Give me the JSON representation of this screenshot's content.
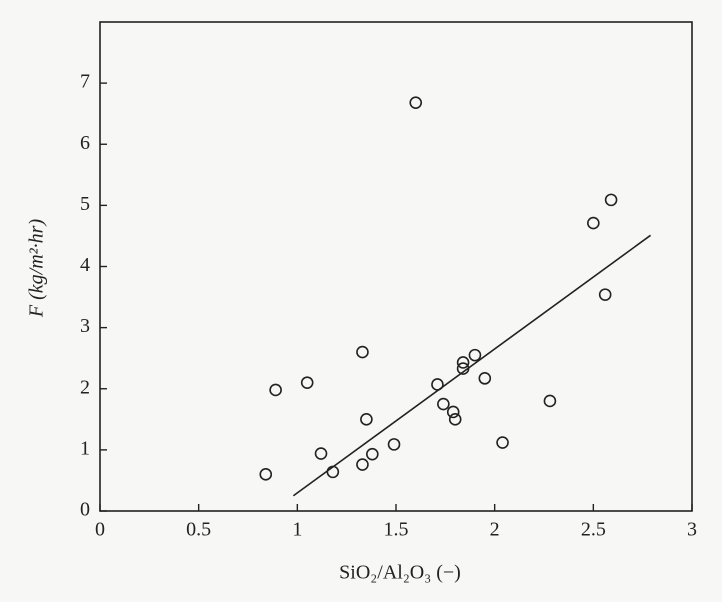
{
  "chart_data": {
    "type": "scatter",
    "x_label": "SiO₂/Al₂O₃ (−)",
    "y_label": "F (kg/m²·hr)",
    "xlim": [
      0,
      3
    ],
    "ylim": [
      0,
      8
    ],
    "xticks": [
      0,
      0.5,
      1,
      1.5,
      2,
      2.5,
      3
    ],
    "yticks": [
      0,
      1,
      2,
      3,
      4,
      5,
      6,
      7
    ],
    "color": "#222222",
    "x": [
      0.84,
      0.89,
      1.05,
      1.12,
      1.18,
      1.33,
      1.33,
      1.35,
      1.38,
      1.49,
      1.6,
      1.71,
      1.74,
      1.79,
      1.8,
      1.84,
      1.84,
      1.9,
      1.95,
      2.04,
      2.28,
      2.5,
      2.59,
      2.56
    ],
    "y": [
      0.6,
      1.98,
      2.1,
      0.94,
      0.64,
      2.6,
      0.76,
      1.5,
      0.93,
      1.09,
      6.68,
      2.07,
      1.75,
      1.62,
      1.5,
      2.33,
      2.43,
      2.55,
      2.17,
      1.12,
      1.8,
      4.71,
      5.09,
      3.54
    ],
    "fit_line": {
      "x": [
        0.98,
        2.79
      ],
      "y": [
        0.25,
        4.51
      ]
    }
  }
}
